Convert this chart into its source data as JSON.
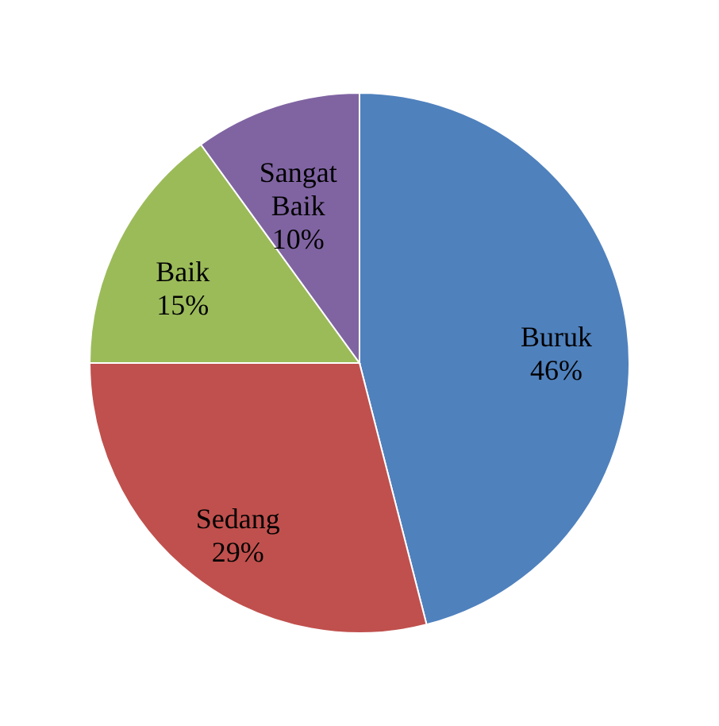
{
  "chart_data": {
    "type": "pie",
    "categories": [
      "Buruk",
      "Sedang",
      "Baik",
      "Sangat Baik"
    ],
    "values": [
      46,
      29,
      15,
      10
    ],
    "value_labels": [
      "46%",
      "29%",
      "15%",
      "10%"
    ],
    "colors": [
      "#4f81bd",
      "#c0504d",
      "#9bbb59",
      "#8064a2"
    ],
    "legend": false
  }
}
